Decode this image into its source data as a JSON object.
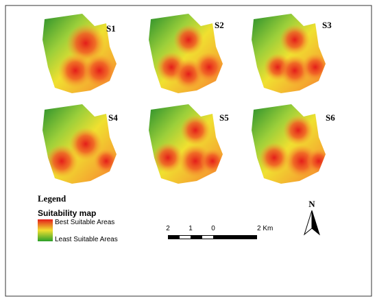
{
  "panels": [
    "S1",
    "S2",
    "S3",
    "S4",
    "S5",
    "S6"
  ],
  "legend": {
    "title": "Legend",
    "subtitle": "Suitability map",
    "best": "Best Suitable Areas",
    "least": "Least Suitable Areas"
  },
  "scale_bar": {
    "labels": [
      "2",
      "1",
      "0",
      "2 Km"
    ]
  },
  "north": "N"
}
